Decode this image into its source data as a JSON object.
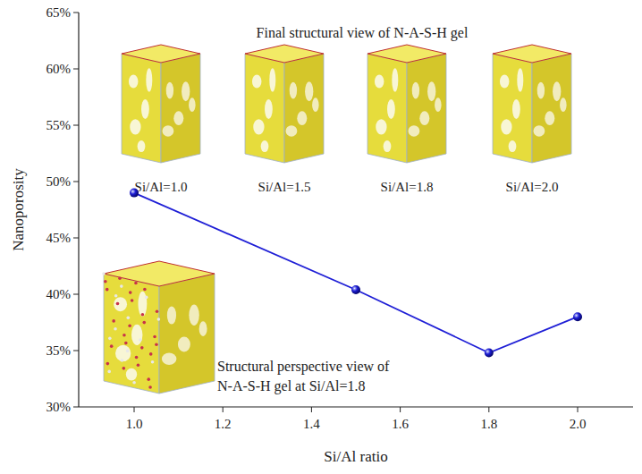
{
  "chart_data": {
    "type": "line",
    "x": [
      1.0,
      1.5,
      1.8,
      2.0
    ],
    "values": [
      49,
      40.4,
      34.8,
      38
    ],
    "color": "#1f1fd6",
    "marker": "circle",
    "line_style": "solid",
    "xlabel": "Si/Al ratio",
    "ylabel": "Nanoporosity",
    "xlim": [
      0.875,
      2.125
    ],
    "xticks": [
      {
        "value": 1,
        "label": "1.0"
      },
      1.2,
      1.4,
      1.6,
      1.8,
      {
        "value": 2,
        "label": "2.0"
      }
    ],
    "ylim": [
      30,
      65
    ],
    "yticks": [
      {
        "value": 30,
        "label": "30%"
      },
      {
        "value": 35,
        "label": "35%"
      },
      {
        "value": 40,
        "label": "40%"
      },
      {
        "value": 45,
        "label": "45%"
      },
      {
        "value": 50,
        "label": "50%"
      },
      {
        "value": 55,
        "label": "55%"
      },
      {
        "value": 60,
        "label": "60%"
      },
      {
        "value": 65,
        "label": "65%"
      }
    ],
    "grid": false,
    "annotations": [
      "Final structural view of N-A-S-H gel",
      "Si/Al=1.0",
      "Si/Al=1.5",
      "Si/Al=1.8",
      "Si/Al=2.0",
      "Structural perspective view of",
      "N-A-S-H gel at Si/Al=1.8"
    ]
  }
}
